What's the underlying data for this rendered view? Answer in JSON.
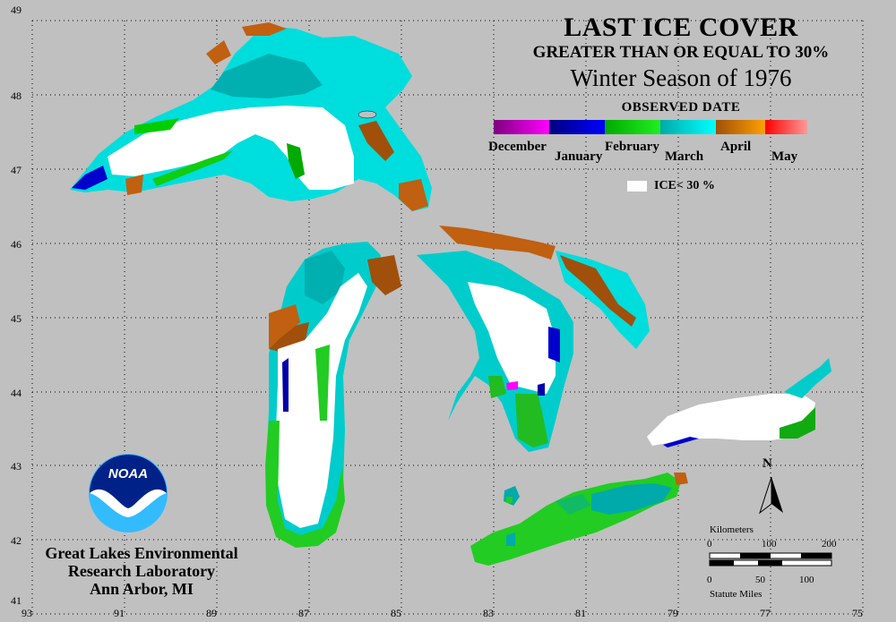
{
  "title": {
    "line1": "LAST ICE COVER",
    "line2": "GREATER THAN OR EQUAL TO 30%",
    "line3": "Winter Season of 1976"
  },
  "legend": {
    "title": "OBSERVED DATE",
    "months": [
      "December",
      "January",
      "February",
      "March",
      "April",
      "May"
    ],
    "colors": {
      "December": [
        "#7f007f",
        "#ff00ff"
      ],
      "January": [
        "#00007f",
        "#0000ff"
      ],
      "February": [
        "#00aa00",
        "#22ee22"
      ],
      "March": [
        "#00aaaa",
        "#00ffff"
      ],
      "April": [
        "#a0500a",
        "#ffa000"
      ],
      "May": [
        "#ff0000",
        "#ff9999"
      ]
    },
    "ice_lt30_label": "ICE< 30 %"
  },
  "axes": {
    "y_ticks": [
      "49",
      "48",
      "47",
      "46",
      "45",
      "44",
      "43",
      "42",
      "41"
    ],
    "x_ticks": [
      "93",
      "91",
      "89",
      "87",
      "85",
      "83",
      "81",
      "79",
      "77",
      "75"
    ]
  },
  "organization": {
    "logo_text": "NOAA",
    "line1": "Great Lakes Environmental",
    "line2": "Research Laboratory",
    "line3": "Ann Arbor, MI"
  },
  "scale": {
    "km_label": "Kilometers",
    "km_ticks": [
      "0",
      "100",
      "200"
    ],
    "mi_ticks": [
      "0",
      "50",
      "100"
    ],
    "mi_label": "Statute Miles"
  },
  "north_label": "N"
}
